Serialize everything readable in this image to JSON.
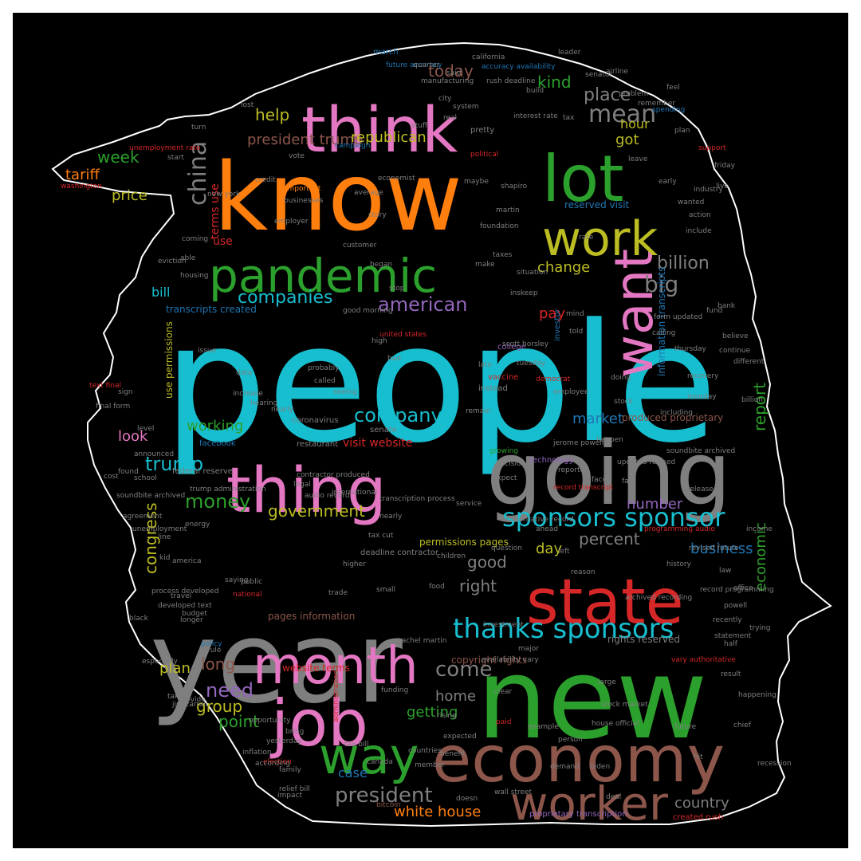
{
  "colors": {
    "background": "#000000",
    "outline": "#ffffff",
    "cyan": "#17becf",
    "orange": "#ff7f0e",
    "green": "#2ca02c",
    "pink": "#e377c2",
    "gray": "#7f7f7f",
    "olive": "#bcbd22",
    "red": "#d62728",
    "brown": "#8c564b",
    "purple": "#9467bd",
    "blue": "#1f77b4"
  },
  "words": [
    {
      "text": "people",
      "color": "cyan"
    },
    {
      "text": "know",
      "color": "orange"
    },
    {
      "text": "year",
      "color": "gray"
    },
    {
      "text": "new",
      "color": "green"
    },
    {
      "text": "going",
      "color": "gray"
    },
    {
      "text": "think",
      "color": "pink"
    },
    {
      "text": "economy",
      "color": "brown"
    },
    {
      "text": "lot",
      "color": "green"
    },
    {
      "text": "pandemic",
      "color": "green"
    },
    {
      "text": "want",
      "color": "pink"
    },
    {
      "text": "thing",
      "color": "pink"
    },
    {
      "text": "state",
      "color": "red"
    },
    {
      "text": "job",
      "color": "pink"
    },
    {
      "text": "month",
      "color": "pink"
    },
    {
      "text": "work",
      "color": "olive"
    },
    {
      "text": "way",
      "color": "green"
    },
    {
      "text": "worker",
      "color": "brown"
    },
    {
      "text": "thanks sponsors",
      "color": "cyan"
    },
    {
      "text": "sponsors sponsor",
      "color": "cyan"
    },
    {
      "text": "china",
      "color": "gray"
    },
    {
      "text": "mean",
      "color": "gray"
    },
    {
      "text": "week",
      "color": "green"
    },
    {
      "text": "companies",
      "color": "cyan"
    },
    {
      "text": "american",
      "color": "purple"
    },
    {
      "text": "big",
      "color": "gray"
    },
    {
      "text": "billion",
      "color": "gray"
    },
    {
      "text": "report",
      "color": "green"
    },
    {
      "text": "company",
      "color": "cyan"
    },
    {
      "text": "trump",
      "color": "cyan"
    },
    {
      "text": "money",
      "color": "green"
    },
    {
      "text": "government",
      "color": "olive"
    },
    {
      "text": "president",
      "color": "gray"
    },
    {
      "text": "come",
      "color": "gray"
    },
    {
      "text": "home",
      "color": "gray"
    },
    {
      "text": "need",
      "color": "purple"
    },
    {
      "text": "group",
      "color": "olive"
    },
    {
      "text": "point",
      "color": "green"
    },
    {
      "text": "plan",
      "color": "olive"
    },
    {
      "text": "long",
      "color": "brown"
    },
    {
      "text": "congress",
      "color": "olive"
    },
    {
      "text": "economic",
      "color": "green"
    },
    {
      "text": "good",
      "color": "gray"
    },
    {
      "text": "right",
      "color": "gray"
    },
    {
      "text": "percent",
      "color": "gray"
    },
    {
      "text": "business",
      "color": "blue"
    },
    {
      "text": "number",
      "color": "purple"
    },
    {
      "text": "market",
      "color": "blue"
    },
    {
      "text": "day",
      "color": "olive"
    },
    {
      "text": "case",
      "color": "blue"
    },
    {
      "text": "getting",
      "color": "green"
    },
    {
      "text": "country",
      "color": "gray"
    },
    {
      "text": "white house",
      "color": "orange"
    },
    {
      "text": "place",
      "color": "gray"
    },
    {
      "text": "kind",
      "color": "green"
    },
    {
      "text": "today",
      "color": "brown"
    },
    {
      "text": "help",
      "color": "olive"
    },
    {
      "text": "got",
      "color": "olive"
    },
    {
      "text": "hour",
      "color": "olive"
    },
    {
      "text": "president trump",
      "color": "brown"
    },
    {
      "text": "republican",
      "color": "olive"
    },
    {
      "text": "tariff",
      "color": "orange"
    },
    {
      "text": "price",
      "color": "olive"
    },
    {
      "text": "change",
      "color": "olive"
    },
    {
      "text": "bill",
      "color": "cyan"
    },
    {
      "text": "pay",
      "color": "red"
    },
    {
      "text": "look",
      "color": "pink"
    },
    {
      "text": "working",
      "color": "green"
    },
    {
      "text": "terms use",
      "color": "red"
    },
    {
      "text": "use",
      "color": "red"
    },
    {
      "text": "reserved visit",
      "color": "blue"
    },
    {
      "text": "transcripts created",
      "color": "blue"
    },
    {
      "text": "produced proprietary",
      "color": "brown"
    },
    {
      "text": "visit website",
      "color": "red"
    },
    {
      "text": "use permissions",
      "color": "olive"
    },
    {
      "text": "pages information",
      "color": "brown"
    },
    {
      "text": "rights reserved",
      "color": "gray"
    },
    {
      "text": "copyright rights",
      "color": "brown"
    },
    {
      "text": "website terms",
      "color": "red"
    },
    {
      "text": "information transcripts",
      "color": "blue"
    },
    {
      "text": "permissions pages",
      "color": "olive"
    },
    {
      "text": "proprietary transcription",
      "color": "purple"
    },
    {
      "text": "created rush",
      "color": "red"
    },
    {
      "text": "deadline contractor",
      "color": "gray"
    },
    {
      "text": "federal reserve",
      "color": "gray"
    },
    {
      "text": "new york",
      "color": "gray"
    },
    {
      "text": "unemployment rate",
      "color": "red"
    },
    {
      "text": "interest rate",
      "color": "gray"
    },
    {
      "text": "washington",
      "color": "red"
    },
    {
      "text": "facebook",
      "color": "blue"
    },
    {
      "text": "coronavirus",
      "color": "gray"
    },
    {
      "text": "vaccine",
      "color": "red"
    },
    {
      "text": "senate",
      "color": "gray"
    },
    {
      "text": "college",
      "color": "purple"
    },
    {
      "text": "investor",
      "color": "blue"
    },
    {
      "text": "restaurant",
      "color": "gray"
    },
    {
      "text": "technology",
      "color": "purple"
    },
    {
      "text": "support",
      "color": "red"
    },
    {
      "text": "family",
      "color": "gray"
    },
    {
      "text": "election",
      "color": "red"
    },
    {
      "text": "policy",
      "color": "blue"
    },
    {
      "text": "statement",
      "color": "gray"
    },
    {
      "text": "industry",
      "color": "gray"
    },
    {
      "text": "investment",
      "color": "gray"
    },
    {
      "text": "budget",
      "color": "gray"
    },
    {
      "text": "administration",
      "color": "red"
    },
    {
      "text": "tax cut",
      "color": "gray"
    },
    {
      "text": "canada",
      "color": "gray"
    },
    {
      "text": "bitcoin",
      "color": "brown"
    },
    {
      "text": "biden",
      "color": "gray"
    },
    {
      "text": "stock market",
      "color": "gray"
    },
    {
      "text": "wall street",
      "color": "gray"
    },
    {
      "text": "instead",
      "color": "gray"
    },
    {
      "text": "pretty",
      "color": "gray"
    },
    {
      "text": "march",
      "color": "blue"
    },
    {
      "text": "future accuracy",
      "color": "blue"
    },
    {
      "text": "accuracy availability",
      "color": "blue"
    },
    {
      "text": "rush deadline",
      "color": "gray"
    },
    {
      "text": "airline",
      "color": "gray"
    },
    {
      "text": "spending",
      "color": "blue"
    },
    {
      "text": "friday",
      "color": "gray"
    },
    {
      "text": "include",
      "color": "gray"
    },
    {
      "text": "economist",
      "color": "gray"
    },
    {
      "text": "businesses",
      "color": "gray"
    },
    {
      "text": "important",
      "color": "orange"
    },
    {
      "text": "campaign",
      "color": "blue"
    },
    {
      "text": "stop",
      "color": "gray"
    },
    {
      "text": "inskeep",
      "color": "gray"
    },
    {
      "text": "good morning",
      "color": "gray"
    },
    {
      "text": "united states",
      "color": "red"
    },
    {
      "text": "scott horsley",
      "color": "gray"
    },
    {
      "text": "tuesday",
      "color": "gray"
    },
    {
      "text": "democrat",
      "color": "red"
    },
    {
      "text": "employee",
      "color": "gray"
    },
    {
      "text": "recovery",
      "color": "gray"
    },
    {
      "text": "including",
      "color": "gray"
    },
    {
      "text": "jerome powell",
      "color": "gray"
    },
    {
      "text": "decision",
      "color": "gray"
    },
    {
      "text": "expect",
      "color": "gray"
    },
    {
      "text": "service",
      "color": "gray"
    },
    {
      "text": "question",
      "color": "gray"
    },
    {
      "text": "higher",
      "color": "gray"
    },
    {
      "text": "trade",
      "color": "gray"
    },
    {
      "text": "national",
      "color": "red"
    },
    {
      "text": "saying",
      "color": "gray"
    },
    {
      "text": "international",
      "color": "gray"
    },
    {
      "text": "audio record",
      "color": "gray"
    },
    {
      "text": "vary authoritative",
      "color": "red"
    },
    {
      "text": "record transcript",
      "color": "red"
    },
    {
      "text": "contractor produced",
      "color": "gray"
    },
    {
      "text": "transcription process",
      "color": "gray"
    },
    {
      "text": "soundbite archived",
      "color": "gray"
    },
    {
      "text": "updated revised",
      "color": "gray"
    },
    {
      "text": "revised future",
      "color": "gray"
    },
    {
      "text": "process developed",
      "color": "gray"
    },
    {
      "text": "developed text",
      "color": "gray"
    },
    {
      "text": "text final",
      "color": "red"
    },
    {
      "text": "final form",
      "color": "gray"
    },
    {
      "text": "form updated",
      "color": "gray"
    },
    {
      "text": "authoritative record",
      "color": "gray"
    },
    {
      "text": "programming audio",
      "color": "red"
    },
    {
      "text": "archived recording",
      "color": "gray"
    },
    {
      "text": "record programming",
      "color": "gray"
    },
    {
      "text": "rachel martin",
      "color": "gray"
    },
    {
      "text": "relief bill",
      "color": "gray"
    },
    {
      "text": "tax bill",
      "color": "gray"
    },
    {
      "text": "house official",
      "color": "gray"
    },
    {
      "text": "availability vary",
      "color": "gray"
    },
    {
      "text": "jim zarroli",
      "color": "gray"
    },
    {
      "text": "yesterday",
      "color": "gray"
    },
    {
      "text": "according",
      "color": "gray"
    },
    {
      "text": "provide",
      "color": "gray"
    },
    {
      "text": "rule",
      "color": "gray"
    },
    {
      "text": "level",
      "color": "gray"
    },
    {
      "text": "announced",
      "color": "gray"
    },
    {
      "text": "found",
      "color": "gray"
    },
    {
      "text": "school",
      "color": "gray"
    },
    {
      "text": "issue",
      "color": "gray"
    },
    {
      "text": "probably",
      "color": "gray"
    },
    {
      "text": "seeing",
      "color": "gray"
    },
    {
      "text": "called",
      "color": "gray"
    },
    {
      "text": "nearly",
      "color": "gray"
    },
    {
      "text": "late",
      "color": "gray"
    },
    {
      "text": "mind",
      "color": "gray"
    },
    {
      "text": "make",
      "color": "gray"
    },
    {
      "text": "said",
      "color": "gray"
    },
    {
      "text": "city",
      "color": "gray"
    },
    {
      "text": "real",
      "color": "gray"
    },
    {
      "text": "lost",
      "color": "gray"
    },
    {
      "text": "turn",
      "color": "gray"
    },
    {
      "text": "start",
      "color": "gray"
    },
    {
      "text": "able",
      "color": "gray"
    },
    {
      "text": "coming",
      "color": "gray"
    },
    {
      "text": "housing",
      "color": "gray"
    },
    {
      "text": "eviction",
      "color": "gray"
    },
    {
      "text": "sign",
      "color": "gray"
    },
    {
      "text": "cost",
      "color": "gray"
    },
    {
      "text": "agreement",
      "color": "gray"
    },
    {
      "text": "unemployment",
      "color": "gray"
    },
    {
      "text": "black",
      "color": "gray"
    },
    {
      "text": "especially",
      "color": "gray"
    },
    {
      "text": "taking",
      "color": "gray"
    },
    {
      "text": "opportunity",
      "color": "gray"
    },
    {
      "text": "inflation",
      "color": "gray"
    },
    {
      "text": "bring",
      "color": "gray"
    },
    {
      "text": "countries",
      "color": "gray"
    },
    {
      "text": "expected",
      "color": "gray"
    },
    {
      "text": "member",
      "color": "gray"
    },
    {
      "text": "paid",
      "color": "red"
    },
    {
      "text": "large",
      "color": "gray"
    },
    {
      "text": "left",
      "color": "gray"
    },
    {
      "text": "early",
      "color": "gray"
    },
    {
      "text": "wanted",
      "color": "gray"
    },
    {
      "text": "action",
      "color": "gray"
    },
    {
      "text": "bank",
      "color": "gray"
    },
    {
      "text": "believe",
      "color": "gray"
    },
    {
      "text": "different",
      "color": "gray"
    },
    {
      "text": "billion",
      "color": "gray"
    },
    {
      "text": "income",
      "color": "gray"
    },
    {
      "text": "office",
      "color": "gray"
    },
    {
      "text": "trying",
      "color": "gray"
    },
    {
      "text": "happening",
      "color": "gray"
    },
    {
      "text": "major",
      "color": "gray"
    },
    {
      "text": "clear",
      "color": "gray"
    },
    {
      "text": "taxes",
      "color": "gray"
    },
    {
      "text": "foundation",
      "color": "gray"
    },
    {
      "text": "martin",
      "color": "gray"
    },
    {
      "text": "maybe",
      "color": "gray"
    },
    {
      "text": "political",
      "color": "red"
    },
    {
      "text": "shapiro",
      "color": "gray"
    },
    {
      "text": "story",
      "color": "gray"
    },
    {
      "text": "high",
      "color": "gray"
    },
    {
      "text": "bad",
      "color": "gray"
    },
    {
      "text": "data",
      "color": "gray"
    },
    {
      "text": "increase",
      "color": "gray"
    },
    {
      "text": "hearing",
      "color": "gray"
    },
    {
      "text": "rate",
      "color": "gray"
    },
    {
      "text": "told",
      "color": "gray"
    },
    {
      "text": "fund",
      "color": "gray"
    },
    {
      "text": "continue",
      "color": "gray"
    },
    {
      "text": "happen",
      "color": "gray"
    },
    {
      "text": "fact",
      "color": "gray"
    },
    {
      "text": "history",
      "color": "gray"
    },
    {
      "text": "law",
      "color": "gray"
    },
    {
      "text": "powell",
      "color": "gray"
    },
    {
      "text": "example",
      "color": "gray"
    },
    {
      "text": "line",
      "color": "gray"
    },
    {
      "text": "america",
      "color": "gray"
    },
    {
      "text": "public",
      "color": "gray"
    },
    {
      "text": "small",
      "color": "gray"
    },
    {
      "text": "nearly",
      "color": "gray"
    },
    {
      "text": "children",
      "color": "gray"
    },
    {
      "text": "food",
      "color": "gray"
    },
    {
      "text": "ahead",
      "color": "gray"
    },
    {
      "text": "reason",
      "color": "gray"
    },
    {
      "text": "situation",
      "color": "gray"
    },
    {
      "text": "build",
      "color": "gray"
    },
    {
      "text": "tax",
      "color": "gray"
    },
    {
      "text": "feel",
      "color": "gray"
    },
    {
      "text": "plan",
      "color": "gray"
    },
    {
      "text": "live",
      "color": "gray"
    },
    {
      "text": "recently",
      "color": "gray"
    },
    {
      "text": "half",
      "color": "gray"
    },
    {
      "text": "travel",
      "color": "gray"
    },
    {
      "text": "longer",
      "color": "gray"
    },
    {
      "text": "kid",
      "color": "gray"
    },
    {
      "text": "manufacturing",
      "color": "gray"
    },
    {
      "text": "quarter",
      "color": "gray"
    },
    {
      "text": "leader",
      "color": "gray"
    },
    {
      "text": "california",
      "color": "gray"
    },
    {
      "text": "remember",
      "color": "gray"
    },
    {
      "text": "senator",
      "color": "gray"
    },
    {
      "text": "problem",
      "color": "gray"
    },
    {
      "text": "system",
      "color": "gray"
    },
    {
      "text": "stuff",
      "color": "gray"
    },
    {
      "text": "leave",
      "color": "gray"
    },
    {
      "text": "began",
      "color": "gray"
    },
    {
      "text": "customer",
      "color": "gray"
    },
    {
      "text": "calling",
      "color": "gray"
    },
    {
      "text": "stock",
      "color": "gray"
    },
    {
      "text": "released",
      "color": "gray"
    },
    {
      "text": "funding",
      "color": "gray"
    },
    {
      "text": "rising",
      "color": "gray"
    },
    {
      "text": "benefit",
      "color": "gray"
    },
    {
      "text": "deal",
      "color": "gray"
    },
    {
      "text": "chief",
      "color": "gray"
    },
    {
      "text": "hit",
      "color": "gray"
    },
    {
      "text": "person",
      "color": "gray"
    },
    {
      "text": "demand",
      "color": "gray"
    },
    {
      "text": "doesn",
      "color": "gray"
    },
    {
      "text": "impact",
      "color": "gray"
    },
    {
      "text": "result",
      "color": "gray"
    },
    {
      "text": "recession",
      "color": "gray"
    },
    {
      "text": "average",
      "color": "gray"
    },
    {
      "text": "employer",
      "color": "gray"
    },
    {
      "text": "credit",
      "color": "gray"
    },
    {
      "text": "vote",
      "color": "gray"
    },
    {
      "text": "future",
      "color": "gray"
    },
    {
      "text": "face",
      "color": "gray"
    },
    {
      "text": "thursday",
      "color": "gray"
    },
    {
      "text": "monday",
      "color": "gray"
    },
    {
      "text": "doing",
      "color": "gray"
    },
    {
      "text": "reported",
      "color": "gray"
    },
    {
      "text": "growing",
      "color": "green"
    },
    {
      "text": "remain",
      "color": "gray"
    },
    {
      "text": "legal",
      "color": "gray"
    },
    {
      "text": "energy",
      "color": "gray"
    },
    {
      "text": "trump administration",
      "color": "gray"
    },
    {
      "text": "soundbite archived",
      "color": "gray"
    },
    {
      "text": "expect",
      "color": "gray"
    },
    {
      "text": "added",
      "color": "gray"
    },
    {
      "text": "worry",
      "color": "gray"
    },
    {
      "text": "buy",
      "color": "gray"
    },
    {
      "text": "nation",
      "color": "gray"
    },
    {
      "text": "drop",
      "color": "gray"
    },
    {
      "text": "process",
      "color": "gray"
    },
    {
      "text": "phone",
      "color": "gray"
    },
    {
      "text": "bank",
      "color": "gray"
    },
    {
      "text": "hard",
      "color": "gray"
    },
    {
      "text": "able",
      "color": "gray"
    },
    {
      "text": "happened",
      "color": "gray"
    }
  ]
}
